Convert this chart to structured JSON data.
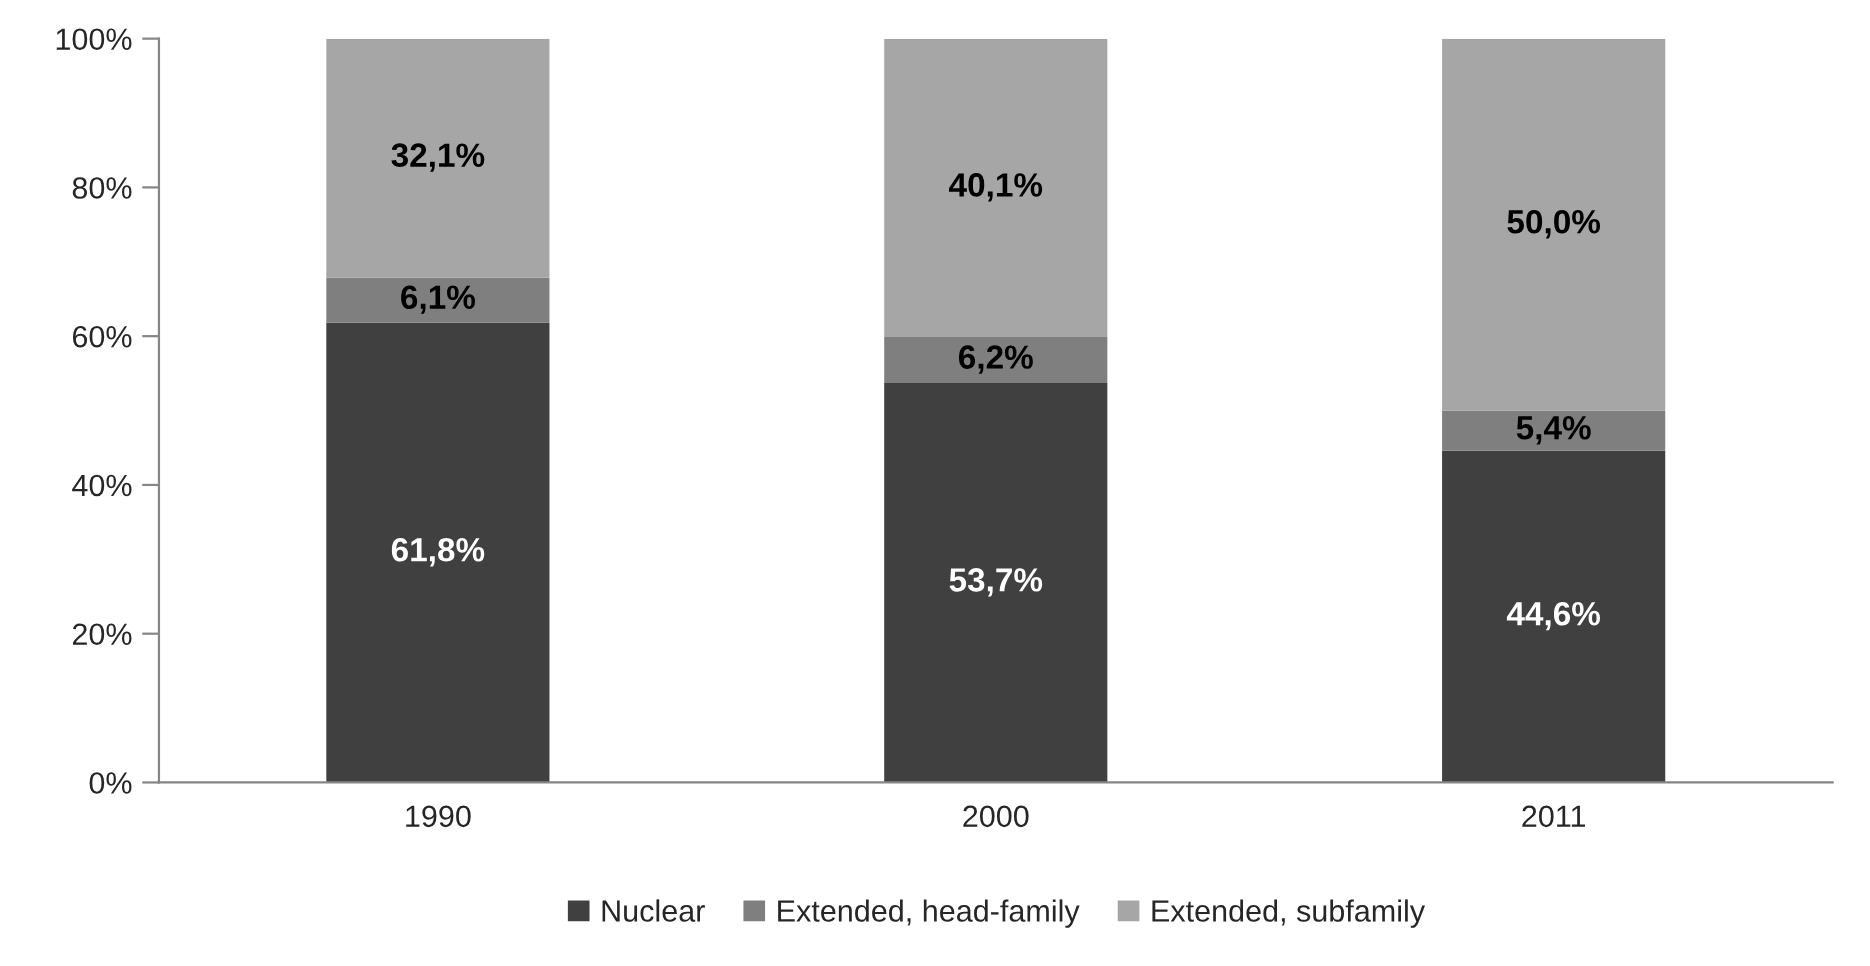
{
  "chart_data": {
    "type": "bar",
    "stacked": true,
    "categories": [
      "1990",
      "2000",
      "2011"
    ],
    "series": [
      {
        "name": "Nuclear",
        "color": "#404040",
        "values": [
          61.8,
          53.7,
          44.6
        ],
        "value_labels": [
          "61,8%",
          "53,7%",
          "44,6%"
        ]
      },
      {
        "name": "Extended, head-family",
        "color": "#7f7f7f",
        "values": [
          6.1,
          6.2,
          5.4
        ],
        "value_labels": [
          "6,1%",
          "6,2%",
          "5,4%"
        ]
      },
      {
        "name": "Extended, subfamily",
        "color": "#a6a6a6",
        "values": [
          32.1,
          40.1,
          50.0
        ],
        "value_labels": [
          "32,1%",
          "40,1%",
          "50,0%"
        ]
      }
    ],
    "ylim": [
      0,
      100
    ],
    "yticks": [
      {
        "value": 0,
        "label": "0%"
      },
      {
        "value": 20,
        "label": "20%"
      },
      {
        "value": 40,
        "label": "40%"
      },
      {
        "value": 60,
        "label": "60%"
      },
      {
        "value": 80,
        "label": "80%"
      },
      {
        "value": 100,
        "label": "100%"
      }
    ],
    "grid": false,
    "legend": "bottom"
  }
}
